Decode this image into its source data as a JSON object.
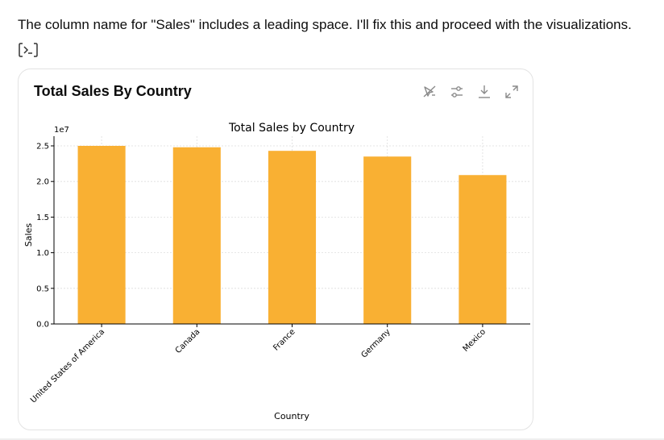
{
  "message": {
    "text": "The column name for \"Sales\" includes a leading space. I'll fix this and proceed with the visualizations."
  },
  "code_toggle": {
    "icon": "code-terminal-icon"
  },
  "card": {
    "title": "Total Sales By Country",
    "toolbar": {
      "icons": [
        "interactive-off-icon",
        "settings-sliders-icon",
        "download-icon",
        "expand-icon"
      ]
    }
  },
  "colors": {
    "bar": "#f9b033",
    "axis": "#000000",
    "grid": "#dddddd",
    "text": "#0d0d0d",
    "icon": "#8a8a8a"
  },
  "chart_data": {
    "type": "bar",
    "title": "Total Sales by Country",
    "xlabel": "Country",
    "ylabel": "Sales",
    "y_offset_label": "1e7",
    "categories": [
      "United States of America",
      "Canada",
      "France",
      "Germany",
      "Mexico"
    ],
    "values": [
      2.5,
      2.48,
      2.43,
      2.35,
      2.09
    ],
    "ylim": [
      0,
      2.5
    ],
    "yticks": [
      0.0,
      0.5,
      1.0,
      1.5,
      2.0,
      2.5
    ],
    "ytick_labels": [
      "0.0",
      "0.5",
      "1.0",
      "1.5",
      "2.0",
      "2.5"
    ],
    "grid": true,
    "legend": "none"
  }
}
